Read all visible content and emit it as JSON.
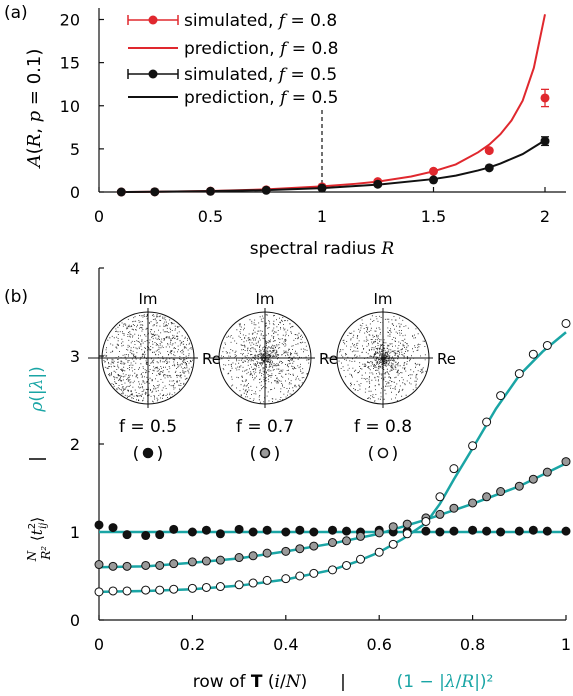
{
  "colors": {
    "red": "#e0282e",
    "black": "#111111",
    "teal": "#1aa5a5",
    "grey": "#9a9a9a"
  },
  "chart_data": [
    {
      "type": "scatter",
      "panel_label": "(a)",
      "xlabel": "spectral radius R",
      "ylabel": "A(R, p = 0.1)",
      "xlim": [
        0,
        2.1
      ],
      "ylim": [
        0,
        21
      ],
      "xticks": [
        "0",
        "0.5",
        "1",
        "1.5",
        "2"
      ],
      "yticks": [
        "0",
        "5",
        "10",
        "15",
        "20"
      ],
      "vline_x": 1,
      "legend_position": "top-left",
      "legend": [
        "simulated, f = 0.8",
        "prediction, f = 0.8",
        "simulated, f = 0.5",
        "prediction, f = 0.5"
      ],
      "series": [
        {
          "name": "simulated, f = 0.8",
          "kind": "points",
          "color": "red",
          "x": [
            0.1,
            0.25,
            0.5,
            0.75,
            1.0,
            1.25,
            1.5,
            1.75,
            2.0
          ],
          "y": [
            0.0,
            0.02,
            0.1,
            0.25,
            0.6,
            1.2,
            2.4,
            4.8,
            10.9
          ],
          "err": [
            0,
            0,
            0,
            0,
            0,
            0,
            0,
            0,
            1.0
          ]
        },
        {
          "name": "prediction, f = 0.8",
          "kind": "line",
          "color": "red",
          "x": [
            0.1,
            0.25,
            0.5,
            0.75,
            1.0,
            1.15,
            1.25,
            1.4,
            1.5,
            1.6,
            1.7,
            1.75,
            1.8,
            1.85,
            1.9,
            1.95,
            2.0
          ],
          "y": [
            0.0,
            0.03,
            0.12,
            0.3,
            0.65,
            0.95,
            1.2,
            1.8,
            2.4,
            3.2,
            4.6,
            5.5,
            6.7,
            8.3,
            10.6,
            14.4,
            20.6
          ]
        },
        {
          "name": "simulated, f = 0.5",
          "kind": "points",
          "color": "black",
          "x": [
            0.1,
            0.25,
            0.5,
            0.75,
            1.0,
            1.25,
            1.5,
            1.75,
            2.0
          ],
          "y": [
            0.0,
            0.02,
            0.08,
            0.2,
            0.45,
            0.9,
            1.4,
            2.8,
            5.9
          ],
          "err": [
            0,
            0,
            0,
            0,
            0,
            0,
            0,
            0,
            0.5
          ]
        },
        {
          "name": "prediction, f = 0.5",
          "kind": "line",
          "color": "black",
          "x": [
            0.1,
            0.25,
            0.5,
            0.75,
            1.0,
            1.25,
            1.5,
            1.6,
            1.7,
            1.75,
            1.8,
            1.9,
            2.0
          ],
          "y": [
            0.0,
            0.03,
            0.1,
            0.22,
            0.45,
            0.85,
            1.5,
            1.9,
            2.5,
            2.85,
            3.3,
            4.4,
            6.0
          ]
        }
      ]
    },
    {
      "type": "scatter",
      "panel_label": "(b)",
      "xlabel": "row of T (i/N)   |   (1 − |λ/R|)²",
      "ylabel": "N/R² ⟨t²ij⟩   |   ρ(|λ|)",
      "xlim": [
        0,
        1
      ],
      "ylim": [
        0,
        4
      ],
      "xticks": [
        "0",
        "0.2",
        "0.4",
        "0.6",
        "0.8",
        "1"
      ],
      "yticks": [
        "0",
        "1",
        "2",
        "3",
        "4"
      ],
      "insets": [
        {
          "f_label": "f = 0.5",
          "marker": "( ● )",
          "im": "Im",
          "re": "Re",
          "concentration": 0.5
        },
        {
          "f_label": "f = 0.7",
          "marker": "( ● )",
          "im": "Im",
          "re": "Re",
          "concentration": 0.7
        },
        {
          "f_label": "f = 0.8",
          "marker": "( ○ )",
          "im": "Im",
          "re": "Re",
          "concentration": 0.8
        }
      ],
      "series": [
        {
          "name": "f = 0.5",
          "marker": "black",
          "x": [
            0.0,
            0.03,
            0.06,
            0.1,
            0.13,
            0.16,
            0.2,
            0.23,
            0.26,
            0.3,
            0.33,
            0.36,
            0.4,
            0.43,
            0.46,
            0.5,
            0.53,
            0.56,
            0.6,
            0.63,
            0.66,
            0.7,
            0.73,
            0.76,
            0.8,
            0.83,
            0.86,
            0.9,
            0.93,
            0.96,
            1.0
          ],
          "y": [
            1.08,
            1.05,
            0.97,
            0.96,
            0.97,
            1.03,
            1.0,
            1.02,
            0.98,
            1.03,
            1.0,
            1.02,
            1.0,
            1.02,
            1.0,
            1.02,
            1.01,
            1.0,
            1.02,
            1.0,
            1.01,
            1.01,
            1.0,
            1.01,
            1.02,
            1.01,
            1.0,
            1.01,
            1.02,
            1.01,
            1.01
          ]
        },
        {
          "name": "f = 0.7",
          "marker": "grey",
          "x": [
            0.0,
            0.03,
            0.06,
            0.1,
            0.13,
            0.16,
            0.2,
            0.23,
            0.26,
            0.3,
            0.33,
            0.36,
            0.4,
            0.43,
            0.46,
            0.5,
            0.53,
            0.56,
            0.6,
            0.63,
            0.66,
            0.7,
            0.73,
            0.76,
            0.8,
            0.83,
            0.86,
            0.9,
            0.93,
            0.96,
            1.0
          ],
          "y": [
            0.63,
            0.61,
            0.61,
            0.62,
            0.62,
            0.64,
            0.66,
            0.67,
            0.68,
            0.71,
            0.73,
            0.76,
            0.78,
            0.81,
            0.84,
            0.88,
            0.9,
            0.95,
            0.99,
            1.06,
            1.09,
            1.16,
            1.2,
            1.27,
            1.33,
            1.4,
            1.46,
            1.52,
            1.6,
            1.68,
            1.8
          ]
        },
        {
          "name": "f = 0.8",
          "marker": "white",
          "x": [
            0.0,
            0.03,
            0.06,
            0.1,
            0.13,
            0.16,
            0.2,
            0.23,
            0.26,
            0.3,
            0.33,
            0.36,
            0.4,
            0.43,
            0.46,
            0.5,
            0.53,
            0.56,
            0.6,
            0.63,
            0.66,
            0.7,
            0.73,
            0.76,
            0.8,
            0.83,
            0.86,
            0.9,
            0.93,
            0.96,
            1.0
          ],
          "y": [
            0.32,
            0.33,
            0.33,
            0.34,
            0.34,
            0.35,
            0.36,
            0.37,
            0.38,
            0.4,
            0.42,
            0.45,
            0.47,
            0.5,
            0.53,
            0.57,
            0.62,
            0.69,
            0.77,
            0.86,
            0.98,
            1.12,
            1.4,
            1.72,
            1.98,
            2.25,
            2.55,
            2.8,
            3.02,
            3.12,
            3.37
          ]
        }
      ],
      "curves": [
        {
          "name": "f = 0.5",
          "color": "teal",
          "x": [
            0,
            0.2,
            0.4,
            0.6,
            0.7,
            0.8,
            0.9,
            1.0
          ],
          "y": [
            1.0,
            1.0,
            1.0,
            1.0,
            1.0,
            1.0,
            1.0,
            1.0
          ]
        },
        {
          "name": "f = 0.7",
          "color": "teal",
          "x": [
            0,
            0.1,
            0.2,
            0.3,
            0.4,
            0.5,
            0.6,
            0.7,
            0.8,
            0.9,
            1.0
          ],
          "y": [
            0.6,
            0.61,
            0.65,
            0.7,
            0.78,
            0.87,
            0.98,
            1.14,
            1.32,
            1.52,
            1.78
          ]
        },
        {
          "name": "f = 0.8",
          "color": "teal",
          "x": [
            0,
            0.1,
            0.2,
            0.3,
            0.4,
            0.5,
            0.55,
            0.6,
            0.65,
            0.7,
            0.73,
            0.76,
            0.8,
            0.85,
            0.9,
            0.95,
            1.0
          ],
          "y": [
            0.32,
            0.33,
            0.35,
            0.39,
            0.46,
            0.57,
            0.66,
            0.77,
            0.92,
            1.1,
            1.32,
            1.6,
            1.95,
            2.4,
            2.78,
            3.05,
            3.27
          ]
        }
      ]
    }
  ]
}
